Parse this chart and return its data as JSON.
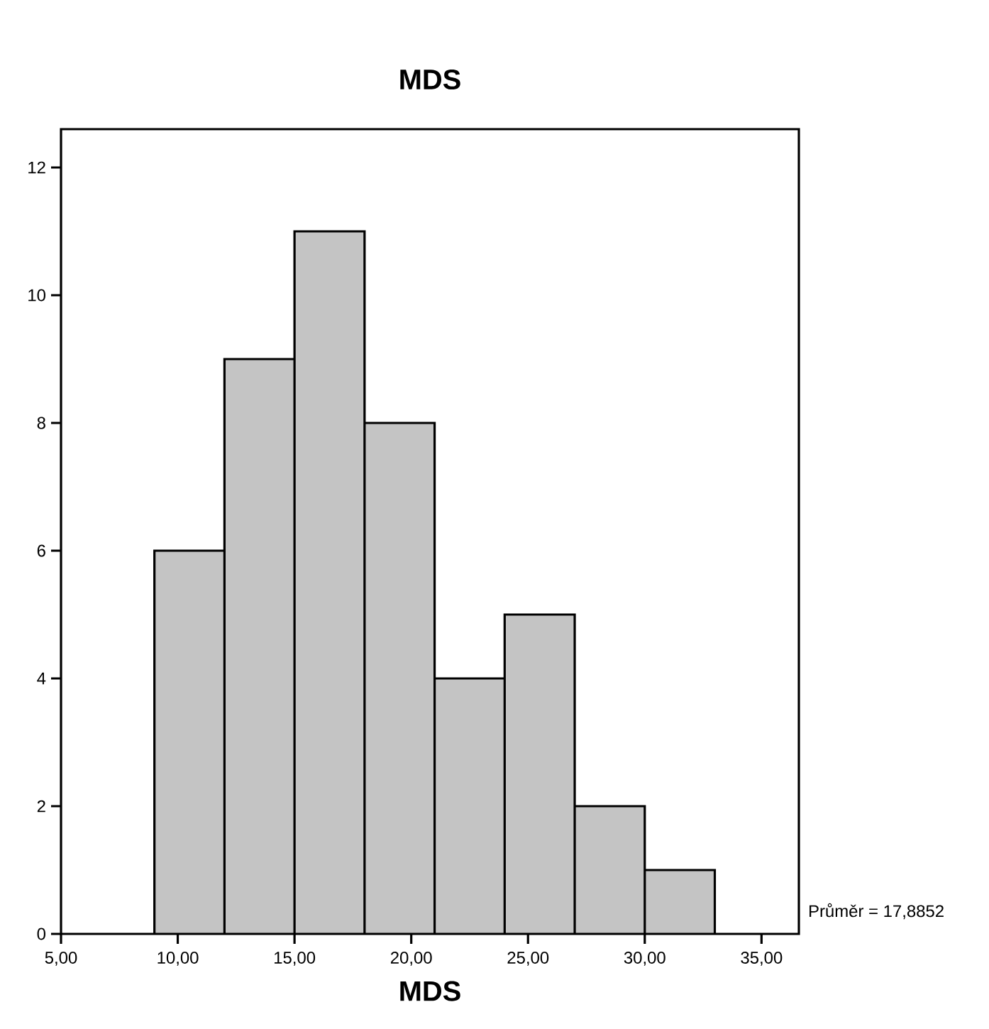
{
  "chart_data": {
    "type": "histogram",
    "title": "MDS",
    "xlabel": "MDS",
    "bins": [
      9,
      12,
      15,
      18,
      21,
      24,
      27,
      30,
      33
    ],
    "values": [
      6,
      9,
      11,
      8,
      4,
      5,
      2,
      1
    ],
    "color": "#c4c4c4",
    "xlim": [
      5,
      36.6
    ],
    "ylim": [
      0,
      12.6
    ],
    "xticks": [
      {
        "value": 5,
        "label": "5,00"
      },
      {
        "value": 10,
        "label": "10,00"
      },
      {
        "value": 15,
        "label": "15,00"
      },
      {
        "value": 20,
        "label": "20,00"
      },
      {
        "value": 25,
        "label": "25,00"
      },
      {
        "value": 30,
        "label": "30,00"
      },
      {
        "value": 35,
        "label": "35,00"
      }
    ],
    "yticks": [
      0,
      2,
      4,
      6,
      8,
      10,
      12
    ],
    "grid": false,
    "annotations": [
      "Průměr = 17,8852"
    ]
  }
}
